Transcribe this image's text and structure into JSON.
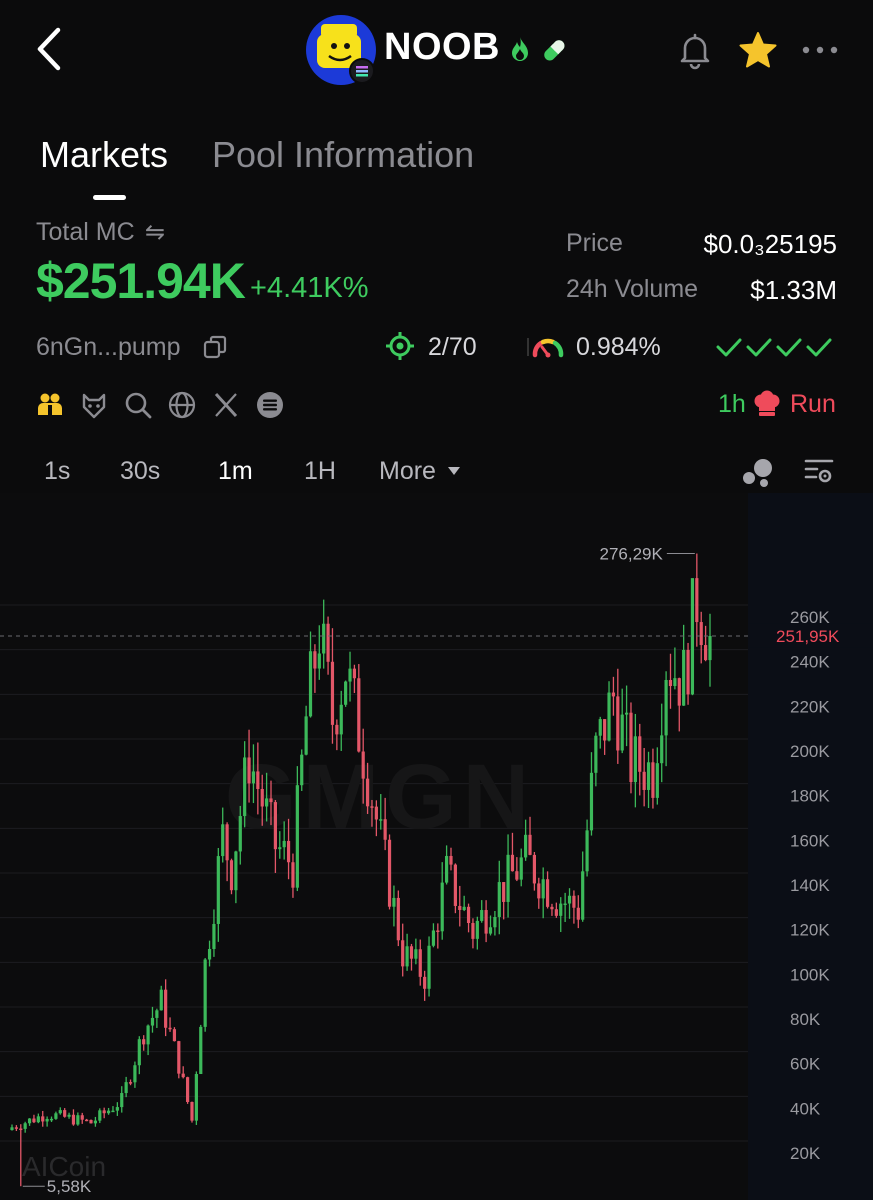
{
  "header": {
    "token_name": "NOOB",
    "icons": [
      "back-arrow-icon",
      "fire-icon",
      "pill-icon",
      "bell-icon",
      "star-icon",
      "more-dots-icon"
    ]
  },
  "tabs": [
    {
      "label": "Markets",
      "active": true
    },
    {
      "label": "Pool Information",
      "active": false
    }
  ],
  "stats": {
    "mc_label": "Total MC",
    "mc_swap": "⇋",
    "mc_value": "$251.94K",
    "mc_change": "+4.41K%",
    "price_label": "Price",
    "price_value": "$0.0₃25195",
    "volume_label": "24h Volume",
    "volume_value": "$1.33M",
    "address": "6nGn...pump",
    "holders": "2/70",
    "gauge_value": "0.984%",
    "run_time": "1h",
    "run_label": "Run"
  },
  "timeframes": [
    {
      "label": "1s",
      "active": false
    },
    {
      "label": "30s",
      "active": false
    },
    {
      "label": "1m",
      "active": true
    },
    {
      "label": "1H",
      "active": false
    },
    {
      "label": "More",
      "active": false
    }
  ],
  "colors": {
    "green": "#3ecb5f",
    "red": "#ef4b5b",
    "up_candle": "#3cb95a",
    "down_candle": "#e35768",
    "background": "#0b0b0c"
  },
  "chart_data": {
    "type": "candlestick",
    "y_ticks": [
      "260K",
      "240K",
      "220K",
      "200K",
      "180K",
      "160K",
      "140K",
      "120K",
      "100K",
      "80K",
      "60K",
      "40K",
      "20K"
    ],
    "y_tick_values": [
      260000,
      240000,
      220000,
      200000,
      180000,
      160000,
      140000,
      120000,
      100000,
      80000,
      60000,
      40000,
      20000
    ],
    "ylim": [
      0,
      285000
    ],
    "high_label": "276,29K",
    "low_label": "5,58K",
    "current_price_label": "251,95K",
    "current_price": 251950,
    "watermark": "AICoin",
    "grid": true,
    "candle_count": 160,
    "closes_anchor": [
      [
        0,
        32000
      ],
      [
        8,
        38000
      ],
      [
        18,
        34000
      ],
      [
        25,
        44000
      ],
      [
        30,
        75000
      ],
      [
        34,
        88000
      ],
      [
        38,
        60000
      ],
      [
        41,
        35000
      ],
      [
        44,
        105000
      ],
      [
        48,
        162000
      ],
      [
        50,
        148000
      ],
      [
        54,
        198000
      ],
      [
        57,
        178000
      ],
      [
        60,
        158000
      ],
      [
        64,
        150000
      ],
      [
        67,
        215000
      ],
      [
        70,
        255000
      ],
      [
        73,
        215000
      ],
      [
        76,
        238000
      ],
      [
        80,
        200000
      ],
      [
        84,
        160000
      ],
      [
        89,
        110000
      ],
      [
        94,
        100000
      ],
      [
        99,
        145000
      ],
      [
        105,
        120000
      ],
      [
        111,
        138000
      ],
      [
        117,
        152000
      ],
      [
        124,
        135000
      ],
      [
        129,
        130000
      ],
      [
        133,
        200000
      ],
      [
        137,
        225000
      ],
      [
        141,
        195000
      ],
      [
        146,
        192000
      ],
      [
        149,
        242000
      ],
      [
        153,
        232000
      ],
      [
        156,
        270000
      ],
      [
        159,
        251950
      ]
    ]
  }
}
